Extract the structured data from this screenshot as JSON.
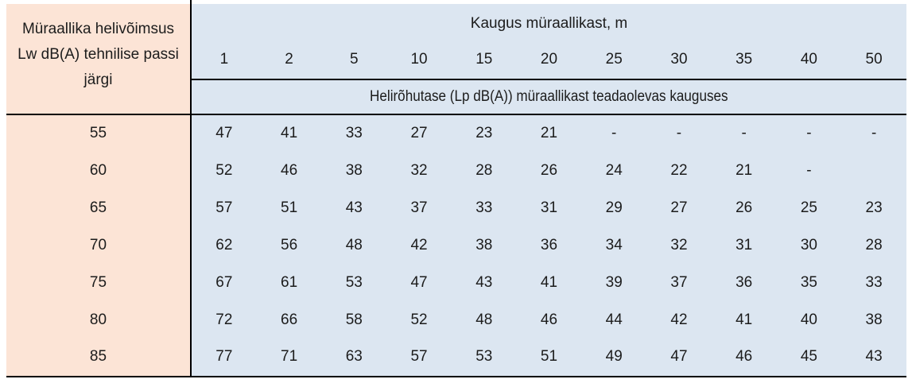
{
  "table": {
    "corner_lines": [
      "Müraallika helivõimsus",
      "Lw dB(A) tehnilise passi",
      "järgi"
    ],
    "distance_header": "Kaugus müraallikast, m",
    "distances": [
      "1",
      "2",
      "5",
      "10",
      "15",
      "20",
      "25",
      "30",
      "35",
      "40",
      "50"
    ],
    "subheader": "Helirõhutase (Lp dB(A)) müraallikast teadaolevas kauguses",
    "rows": [
      {
        "lw": "55",
        "values": [
          "47",
          "41",
          "33",
          "27",
          "23",
          "21",
          "-",
          "-",
          "-",
          "-",
          "-"
        ]
      },
      {
        "lw": "60",
        "values": [
          "52",
          "46",
          "38",
          "32",
          "28",
          "26",
          "24",
          "22",
          "21",
          "-",
          ""
        ]
      },
      {
        "lw": "65",
        "values": [
          "57",
          "51",
          "43",
          "37",
          "33",
          "31",
          "29",
          "27",
          "26",
          "25",
          "23"
        ]
      },
      {
        "lw": "70",
        "values": [
          "62",
          "56",
          "48",
          "42",
          "38",
          "36",
          "34",
          "32",
          "31",
          "30",
          "28"
        ]
      },
      {
        "lw": "75",
        "values": [
          "67",
          "61",
          "53",
          "47",
          "43",
          "41",
          "39",
          "37",
          "36",
          "35",
          "33"
        ]
      },
      {
        "lw": "80",
        "values": [
          "72",
          "66",
          "58",
          "52",
          "48",
          "46",
          "44",
          "42",
          "41",
          "40",
          "38"
        ]
      },
      {
        "lw": "85",
        "values": [
          "77",
          "71",
          "63",
          "57",
          "53",
          "51",
          "49",
          "47",
          "46",
          "45",
          "43"
        ]
      }
    ],
    "colors": {
      "left_column_bg": "#fce4d6",
      "right_area_bg": "#dce6f1",
      "border": "#000000",
      "text": "#1c1c1c"
    }
  },
  "chart_data": {
    "type": "table",
    "row_axis_label": "Müraallika helivõimsus Lw dB(A) tehnilise passi järgi",
    "column_axis_label": "Kaugus müraallikast, m",
    "cell_value_label": "Helirõhutase (Lp dB(A)) müraallikast teadaolevas kauguses",
    "columns_m": [
      1,
      2,
      5,
      10,
      15,
      20,
      25,
      30,
      35,
      40,
      50
    ],
    "row_keys_lw_dba": [
      55,
      60,
      65,
      70,
      75,
      80,
      85
    ],
    "values_lp_dba": [
      [
        47,
        41,
        33,
        27,
        23,
        21,
        null,
        null,
        null,
        null,
        null
      ],
      [
        52,
        46,
        38,
        32,
        28,
        26,
        24,
        22,
        21,
        null,
        null
      ],
      [
        57,
        51,
        43,
        37,
        33,
        31,
        29,
        27,
        26,
        25,
        23
      ],
      [
        62,
        56,
        48,
        42,
        38,
        36,
        34,
        32,
        31,
        30,
        28
      ],
      [
        67,
        61,
        53,
        47,
        43,
        41,
        39,
        37,
        36,
        35,
        33
      ],
      [
        72,
        66,
        58,
        52,
        48,
        46,
        44,
        42,
        41,
        40,
        38
      ],
      [
        77,
        71,
        63,
        57,
        53,
        51,
        49,
        47,
        46,
        45,
        43
      ]
    ]
  }
}
